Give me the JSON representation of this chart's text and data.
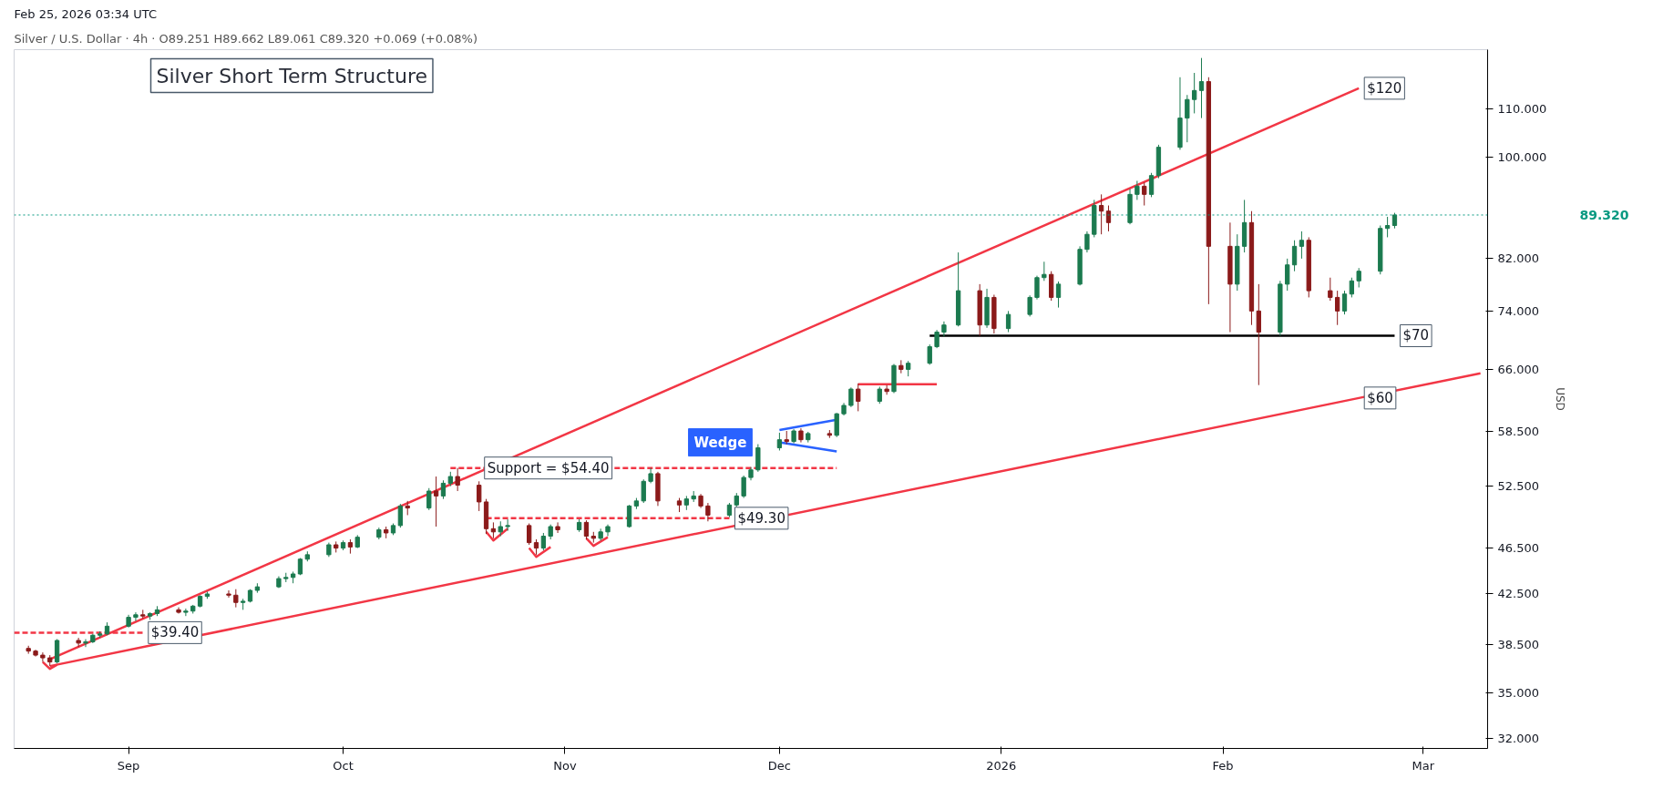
{
  "chart_data": {
    "type": "candlestick",
    "title": "Silver Short Term Structure",
    "subtitle": "Silver / U.S. Dollar · 4h · O89.251 H89.662 L89.061 C89.320 +0.069 (+0.08%)",
    "ylabel": "USD",
    "log": true,
    "grid": false,
    "xlim": [
      "2025-08-16",
      "2026-03-10"
    ],
    "xticks": [
      {
        "value": "2025-09-01",
        "label": "Sep"
      },
      {
        "value": "2025-10-01",
        "label": "Oct"
      },
      {
        "value": "2025-11-01",
        "label": "Nov"
      },
      {
        "value": "2025-12-01",
        "label": "Dec"
      },
      {
        "value": "2026-01-01",
        "label": "2026"
      },
      {
        "value": "2026-02-01",
        "label": "Feb"
      },
      {
        "value": "2026-03-01",
        "label": "Mar"
      }
    ],
    "ylim": [
      31.4,
      123.5
    ],
    "yticks": [
      {
        "value": 32,
        "label": "32.000"
      },
      {
        "value": 35,
        "label": "35.000"
      },
      {
        "value": 38.5,
        "label": "38.500"
      },
      {
        "value": 42.5,
        "label": "42.500"
      },
      {
        "value": 46.5,
        "label": "46.500"
      },
      {
        "value": 52.5,
        "label": "52.500"
      },
      {
        "value": 58.5,
        "label": "58.500"
      },
      {
        "value": 66,
        "label": "66.000"
      },
      {
        "value": 74,
        "label": "74.000"
      },
      {
        "value": 82,
        "label": "82.000"
      },
      {
        "value": 100,
        "label": "100.000"
      },
      {
        "value": 110,
        "label": "110.000"
      }
    ],
    "x": [
      "2025-08-18",
      "2025-08-19",
      "2025-08-20",
      "2025-08-21",
      "2025-08-22",
      "2025-08-25",
      "2025-08-26",
      "2025-08-27",
      "2025-08-28",
      "2025-08-29",
      "2025-09-01",
      "2025-09-02",
      "2025-09-03",
      "2025-09-04",
      "2025-09-05",
      "2025-09-08",
      "2025-09-09",
      "2025-09-10",
      "2025-09-11",
      "2025-09-12",
      "2025-09-15",
      "2025-09-16",
      "2025-09-17",
      "2025-09-18",
      "2025-09-19",
      "2025-09-22",
      "2025-09-23",
      "2025-09-24",
      "2025-09-25",
      "2025-09-26",
      "2025-09-29",
      "2025-09-30",
      "2025-10-01",
      "2025-10-02",
      "2025-10-03",
      "2025-10-06",
      "2025-10-07",
      "2025-10-08",
      "2025-10-09",
      "2025-10-10",
      "2025-10-13",
      "2025-10-14",
      "2025-10-15",
      "2025-10-16",
      "2025-10-17",
      "2025-10-20",
      "2025-10-21",
      "2025-10-22",
      "2025-10-23",
      "2025-10-24",
      "2025-10-27",
      "2025-10-28",
      "2025-10-29",
      "2025-10-30",
      "2025-10-31",
      "2025-11-03",
      "2025-11-04",
      "2025-11-05",
      "2025-11-06",
      "2025-11-07",
      "2025-11-10",
      "2025-11-11",
      "2025-11-12",
      "2025-11-13",
      "2025-11-14",
      "2025-11-17",
      "2025-11-18",
      "2025-11-19",
      "2025-11-20",
      "2025-11-21",
      "2025-11-24",
      "2025-11-25",
      "2025-11-26",
      "2025-11-27",
      "2025-11-28",
      "2025-12-01",
      "2025-12-02",
      "2025-12-03",
      "2025-12-04",
      "2025-12-05",
      "2025-12-08",
      "2025-12-09",
      "2025-12-10",
      "2025-12-11",
      "2025-12-12",
      "2025-12-15",
      "2025-12-16",
      "2025-12-17",
      "2025-12-18",
      "2025-12-19",
      "2025-12-22",
      "2025-12-23",
      "2025-12-24",
      "2025-12-26",
      "2025-12-29",
      "2025-12-30",
      "2025-12-31",
      "2026-01-02",
      "2026-01-05",
      "2026-01-06",
      "2026-01-07",
      "2026-01-08",
      "2026-01-09",
      "2026-01-12",
      "2026-01-13",
      "2026-01-14",
      "2026-01-15",
      "2026-01-16",
      "2026-01-19",
      "2026-01-20",
      "2026-01-21",
      "2026-01-22",
      "2026-01-23",
      "2026-01-26",
      "2026-01-27",
      "2026-01-28",
      "2026-01-29",
      "2026-01-30",
      "2026-02-02",
      "2026-02-03",
      "2026-02-04",
      "2026-02-05",
      "2026-02-06",
      "2026-02-09",
      "2026-02-10",
      "2026-02-11",
      "2026-02-12",
      "2026-02-13",
      "2026-02-16",
      "2026-02-17",
      "2026-02-18",
      "2026-02-19",
      "2026-02-20",
      "2026-02-23",
      "2026-02-24",
      "2026-02-25"
    ],
    "ohlc": [
      [
        38.2,
        38.4,
        37.8,
        38.0
      ],
      [
        38.0,
        38.1,
        37.6,
        37.7
      ],
      [
        37.7,
        37.9,
        37.2,
        37.5
      ],
      [
        37.5,
        37.7,
        36.9,
        37.2
      ],
      [
        37.2,
        38.9,
        37.1,
        38.8
      ],
      [
        38.8,
        39.0,
        38.3,
        38.6
      ],
      [
        38.6,
        38.9,
        38.3,
        38.7
      ],
      [
        38.7,
        39.3,
        38.6,
        39.2
      ],
      [
        39.2,
        39.5,
        39.0,
        39.3
      ],
      [
        39.3,
        40.2,
        39.2,
        39.9
      ],
      [
        39.9,
        40.8,
        39.8,
        40.6
      ],
      [
        40.6,
        41.0,
        40.3,
        40.8
      ],
      [
        40.8,
        41.2,
        40.5,
        40.7
      ],
      [
        40.7,
        41.0,
        40.4,
        40.9
      ],
      [
        40.9,
        41.5,
        40.7,
        41.2
      ],
      [
        41.2,
        41.4,
        40.9,
        41.0
      ],
      [
        41.0,
        41.3,
        40.7,
        41.1
      ],
      [
        41.1,
        41.6,
        40.9,
        41.5
      ],
      [
        41.5,
        42.4,
        41.4,
        42.3
      ],
      [
        42.3,
        42.7,
        42.1,
        42.5
      ],
      [
        42.5,
        42.8,
        42.2,
        42.4
      ],
      [
        42.4,
        42.9,
        41.4,
        41.8
      ],
      [
        41.8,
        42.1,
        41.2,
        41.9
      ],
      [
        41.9,
        42.9,
        41.8,
        42.8
      ],
      [
        42.8,
        43.4,
        42.6,
        43.1
      ],
      [
        43.1,
        44.0,
        43.0,
        43.8
      ],
      [
        43.8,
        44.3,
        43.5,
        43.9
      ],
      [
        43.9,
        44.4,
        43.4,
        44.2
      ],
      [
        44.2,
        45.6,
        44.1,
        45.5
      ],
      [
        45.5,
        46.2,
        45.3,
        45.9
      ],
      [
        45.9,
        47.0,
        45.7,
        46.8
      ],
      [
        46.8,
        47.1,
        46.1,
        46.5
      ],
      [
        46.5,
        47.2,
        46.3,
        47.0
      ],
      [
        47.0,
        47.3,
        46.0,
        46.6
      ],
      [
        46.6,
        47.7,
        46.5,
        47.5
      ],
      [
        47.5,
        48.4,
        47.3,
        48.2
      ],
      [
        48.2,
        48.5,
        47.4,
        47.9
      ],
      [
        47.9,
        48.8,
        47.7,
        48.6
      ],
      [
        48.6,
        50.7,
        48.4,
        50.5
      ],
      [
        50.5,
        51.0,
        49.6,
        50.3
      ],
      [
        50.3,
        52.3,
        50.1,
        52.0
      ],
      [
        52.0,
        53.5,
        48.5,
        51.5
      ],
      [
        51.5,
        53.1,
        51.2,
        52.8
      ],
      [
        52.8,
        54.0,
        52.5,
        53.5
      ],
      [
        53.5,
        54.4,
        52.0,
        52.6
      ],
      [
        52.6,
        53.0,
        50.0,
        50.9
      ],
      [
        50.9,
        51.2,
        47.8,
        48.3
      ],
      [
        48.3,
        48.9,
        47.4,
        48.0
      ],
      [
        48.0,
        49.0,
        47.6,
        48.5
      ],
      [
        48.5,
        49.2,
        48.1,
        48.6
      ],
      [
        48.6,
        48.8,
        46.8,
        47.0
      ],
      [
        47.0,
        47.3,
        45.9,
        46.5
      ],
      [
        46.5,
        47.9,
        46.3,
        47.6
      ],
      [
        47.6,
        48.7,
        47.3,
        48.5
      ],
      [
        48.5,
        48.9,
        47.9,
        48.2
      ],
      [
        48.2,
        49.2,
        48.0,
        48.9
      ],
      [
        48.9,
        49.1,
        47.3,
        47.6
      ],
      [
        47.6,
        48.0,
        47.0,
        47.4
      ],
      [
        47.4,
        48.3,
        47.2,
        48.0
      ],
      [
        48.0,
        48.7,
        47.6,
        48.5
      ],
      [
        48.5,
        50.6,
        48.4,
        50.5
      ],
      [
        50.5,
        51.3,
        50.2,
        51.0
      ],
      [
        51.0,
        53.2,
        50.8,
        53.0
      ],
      [
        53.0,
        54.4,
        52.8,
        53.8
      ],
      [
        53.8,
        54.0,
        50.5,
        51.0
      ],
      [
        51.0,
        51.3,
        49.9,
        50.6
      ],
      [
        50.6,
        51.5,
        50.1,
        51.2
      ],
      [
        51.2,
        52.0,
        50.9,
        51.5
      ],
      [
        51.5,
        51.7,
        50.3,
        50.5
      ],
      [
        50.5,
        50.8,
        49.0,
        49.6
      ],
      [
        49.6,
        50.8,
        49.4,
        50.6
      ],
      [
        50.6,
        51.8,
        50.4,
        51.5
      ],
      [
        51.5,
        53.6,
        51.3,
        53.4
      ],
      [
        53.4,
        54.5,
        53.1,
        54.2
      ],
      [
        54.2,
        57.0,
        54.0,
        56.6
      ],
      [
        56.6,
        58.3,
        56.3,
        57.5
      ],
      [
        57.5,
        58.5,
        57.0,
        57.3
      ],
      [
        57.3,
        58.7,
        57.1,
        58.5
      ],
      [
        58.5,
        58.8,
        57.2,
        57.5
      ],
      [
        57.5,
        58.4,
        57.2,
        58.2
      ],
      [
        58.2,
        58.6,
        57.7,
        58.0
      ],
      [
        58.0,
        60.6,
        57.8,
        60.5
      ],
      [
        60.5,
        61.8,
        60.3,
        61.5
      ],
      [
        61.5,
        63.7,
        61.3,
        63.5
      ],
      [
        63.5,
        64.2,
        60.8,
        62.0
      ],
      [
        62.0,
        63.8,
        61.7,
        63.5
      ],
      [
        63.5,
        64.0,
        62.8,
        63.2
      ],
      [
        63.2,
        66.7,
        63.0,
        66.5
      ],
      [
        66.5,
        67.2,
        65.5,
        66.0
      ],
      [
        66.0,
        67.1,
        65.1,
        66.8
      ],
      [
        66.8,
        69.3,
        66.6,
        69.0
      ],
      [
        69.0,
        71.3,
        68.8,
        71.0
      ],
      [
        71.0,
        72.5,
        70.4,
        72.0
      ],
      [
        72.0,
        83.0,
        71.8,
        77.0
      ],
      [
        77.0,
        78.0,
        70.5,
        72.0
      ],
      [
        72.0,
        77.3,
        71.6,
        76.0
      ],
      [
        76.0,
        76.4,
        70.8,
        71.5
      ],
      [
        71.5,
        74.0,
        71.0,
        73.5
      ],
      [
        73.5,
        76.3,
        73.2,
        76.0
      ],
      [
        76.0,
        79.3,
        75.7,
        79.0
      ],
      [
        79.0,
        81.5,
        78.5,
        79.5
      ],
      [
        79.5,
        80.0,
        75.5,
        76.0
      ],
      [
        76.0,
        78.4,
        74.5,
        78.0
      ],
      [
        78.0,
        84.0,
        77.8,
        83.5
      ],
      [
        83.5,
        86.5,
        83.0,
        86.0
      ],
      [
        86.0,
        92.0,
        85.5,
        91.0
      ],
      [
        91.0,
        93.0,
        86.0,
        90.0
      ],
      [
        90.0,
        91.0,
        86.5,
        88.0
      ],
      [
        88.0,
        94.0,
        87.7,
        93.0
      ],
      [
        93.0,
        95.5,
        92.0,
        94.5
      ],
      [
        94.5,
        95.2,
        91.0,
        93.0
      ],
      [
        93.0,
        97.0,
        92.5,
        96.5
      ],
      [
        96.5,
        102.5,
        96.0,
        102.0
      ],
      [
        102.0,
        117.0,
        101.5,
        108.0
      ],
      [
        108.0,
        113.0,
        103.0,
        112.0
      ],
      [
        112.0,
        118.0,
        109.0,
        114.0
      ],
      [
        114.0,
        121.5,
        108.0,
        116.0
      ],
      [
        116.0,
        117.0,
        75.0,
        84.0
      ],
      [
        84.0,
        88.0,
        71.0,
        78.0
      ],
      [
        78.0,
        86.0,
        77.0,
        84.0
      ],
      [
        84.0,
        92.0,
        83.0,
        88.0
      ],
      [
        88.0,
        90.0,
        72.0,
        74.0
      ],
      [
        74.0,
        78.0,
        64.0,
        71.0
      ],
      [
        71.0,
        78.5,
        70.5,
        78.0
      ],
      [
        78.0,
        82.0,
        77.0,
        81.0
      ],
      [
        81.0,
        85.0,
        80.0,
        84.0
      ],
      [
        84.0,
        86.5,
        82.0,
        85.0
      ],
      [
        85.0,
        85.5,
        76.0,
        77.0
      ],
      [
        77.0,
        79.0,
        75.5,
        76.0
      ],
      [
        76.0,
        77.0,
        72.0,
        74.0
      ],
      [
        74.0,
        77.0,
        73.5,
        76.5
      ],
      [
        76.5,
        79.0,
        76.0,
        78.5
      ],
      [
        78.5,
        80.5,
        77.5,
        80.0
      ],
      [
        80.0,
        87.5,
        79.5,
        87.0
      ],
      [
        87.0,
        89.0,
        85.5,
        87.5
      ],
      [
        87.5,
        89.7,
        87.0,
        89.32
      ]
    ],
    "series": [
      {
        "type": "line",
        "color": "#f23645",
        "line_style": "solid",
        "x": [
          "2025-08-21",
          "2026-02-20"
        ],
        "values": [
          37.4,
          114.5
        ]
      },
      {
        "type": "line",
        "color": "#f23645",
        "line_style": "solid",
        "x": [
          "2025-08-21",
          "2026-02-20",
          "2026-03-09"
        ],
        "values": [
          36.9,
          62.4,
          65.5
        ]
      },
      {
        "type": "line",
        "color": "#000000",
        "line_style": "solid",
        "x": [
          "2025-12-22",
          "2026-02-25"
        ],
        "values": [
          70.5,
          70.5
        ]
      },
      {
        "type": "line",
        "color": "#f23645",
        "line_style": "dashed",
        "x": [
          "2025-08-16",
          "2025-09-03"
        ],
        "values": [
          39.4,
          39.4
        ]
      },
      {
        "type": "line",
        "color": "#f23645",
        "line_style": "dashed",
        "x": [
          "2025-10-16",
          "2025-12-09"
        ],
        "values": [
          54.4,
          54.4
        ]
      },
      {
        "type": "line",
        "color": "#f23645",
        "line_style": "dashed",
        "x": [
          "2025-10-21",
          "2025-11-24"
        ],
        "values": [
          49.3,
          49.3
        ]
      },
      {
        "type": "line",
        "color": "#f23645",
        "line_style": "solid",
        "x": [
          "2025-12-12",
          "2025-12-23"
        ],
        "values": [
          64.1,
          64.1
        ]
      },
      {
        "type": "line",
        "color": "#2962ff",
        "line_style": "solid",
        "x": [
          "2025-12-01",
          "2025-12-09"
        ],
        "values": [
          58.6,
          59.8
        ]
      },
      {
        "type": "line",
        "color": "#2962ff",
        "line_style": "solid",
        "x": [
          "2025-12-01",
          "2025-12-09"
        ],
        "values": [
          57.2,
          56.2
        ]
      },
      {
        "type": "line",
        "color": "#f23645",
        "line_style": "solid",
        "x": [
          "2025-08-20",
          "2025-08-21",
          "2025-08-22"
        ],
        "values": [
          37.2,
          36.7,
          37.0
        ]
      },
      {
        "type": "line",
        "color": "#f23645",
        "line_style": "solid",
        "x": [
          "2025-10-21",
          "2025-10-22",
          "2025-10-24"
        ],
        "values": [
          48.0,
          47.2,
          48.3
        ]
      },
      {
        "type": "line",
        "color": "#f23645",
        "line_style": "solid",
        "x": [
          "2025-10-27",
          "2025-10-28",
          "2025-10-30"
        ],
        "values": [
          46.5,
          45.7,
          46.6
        ]
      },
      {
        "type": "line",
        "color": "#f23645",
        "line_style": "solid",
        "x": [
          "2025-11-04",
          "2025-11-05",
          "2025-11-07"
        ],
        "values": [
          47.4,
          46.7,
          47.5
        ]
      }
    ],
    "ref_lines": [
      {
        "axis": "y",
        "value": 89.32,
        "label": "89.320",
        "color": "#089981",
        "line_style": "dotted"
      }
    ],
    "annotations": [
      "Feb 25, 2026 03:34 UTC",
      {
        "text": "$120",
        "x": "2026-02-20",
        "y": 114.5
      },
      {
        "text": "$60",
        "x": "2026-02-20",
        "y": 62.4
      },
      {
        "text": "$70",
        "x": "2026-02-25",
        "y": 70.5
      },
      {
        "text": "Support = $54.40",
        "x": "2025-10-20",
        "y": 54.4
      },
      {
        "text": "$49.30",
        "x": "2025-11-24",
        "y": 49.3
      },
      {
        "text": "$39.40",
        "x": "2025-09-03",
        "y": 39.4
      },
      {
        "text": "Wedge",
        "x": "2025-12-01",
        "y": 57.2
      }
    ]
  }
}
